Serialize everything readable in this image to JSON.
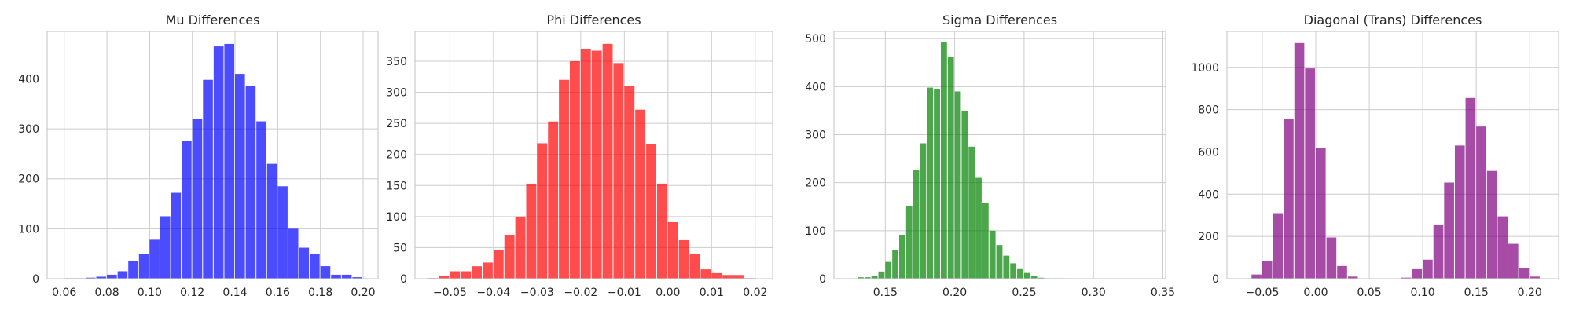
{
  "chart_data": [
    {
      "type": "histogram",
      "title": "Mu Differences",
      "color": "#0000ff",
      "x": [
        0.06,
        0.065,
        0.07,
        0.075,
        0.08,
        0.085,
        0.09,
        0.095,
        0.1,
        0.105,
        0.11,
        0.115,
        0.12,
        0.125,
        0.13,
        0.135,
        0.14,
        0.145,
        0.15,
        0.155,
        0.16,
        0.165,
        0.17,
        0.175,
        0.18,
        0.185,
        0.19,
        0.195
      ],
      "bin_width": 0.005,
      "values": [
        1,
        1,
        2,
        4,
        8,
        15,
        35,
        50,
        78,
        125,
        172,
        275,
        320,
        398,
        465,
        470,
        410,
        385,
        315,
        230,
        185,
        100,
        62,
        50,
        25,
        8,
        8,
        3
      ],
      "xlim": [
        0.052,
        0.207
      ],
      "ylim": [
        0,
        495
      ],
      "xticks": [
        0.06,
        0.08,
        0.1,
        0.12,
        0.14,
        0.16,
        0.18,
        0.2
      ],
      "xtick_labels": [
        "0.06",
        "0.08",
        "0.10",
        "0.12",
        "0.14",
        "0.16",
        "0.18",
        "0.20"
      ],
      "yticks": [
        0,
        100,
        200,
        300,
        400
      ],
      "ytick_labels": [
        "0",
        "100",
        "200",
        "300",
        "400"
      ],
      "grid": true
    },
    {
      "type": "histogram",
      "title": "Phi Differences",
      "color": "#ff0000",
      "x": [
        -0.055,
        -0.0525,
        -0.05,
        -0.0475,
        -0.045,
        -0.0425,
        -0.04,
        -0.0375,
        -0.035,
        -0.0325,
        -0.03,
        -0.0275,
        -0.025,
        -0.0225,
        -0.02,
        -0.0175,
        -0.015,
        -0.0125,
        -0.01,
        -0.0075,
        -0.005,
        -0.0025,
        0.0,
        0.0025,
        0.005,
        0.0075,
        0.01,
        0.0125,
        0.015,
        0.0175
      ],
      "bin_width": 0.0025,
      "values": [
        1,
        5,
        12,
        12,
        20,
        26,
        46,
        70,
        100,
        153,
        218,
        253,
        320,
        350,
        370,
        367,
        378,
        347,
        310,
        272,
        217,
        153,
        91,
        62,
        40,
        15,
        9,
        6,
        6,
        1
      ],
      "xlim": [
        -0.058,
        0.024
      ],
      "ylim": [
        0,
        398
      ],
      "xticks": [
        -0.05,
        -0.04,
        -0.03,
        -0.02,
        -0.01,
        0.0,
        0.01,
        0.02
      ],
      "xtick_labels": [
        "−0.05",
        "−0.04",
        "−0.03",
        "−0.02",
        "−0.01",
        "0.00",
        "0.01",
        "0.02"
      ],
      "yticks": [
        0,
        50,
        100,
        150,
        200,
        250,
        300,
        350
      ],
      "ytick_labels": [
        "0",
        "50",
        "100",
        "150",
        "200",
        "250",
        "300",
        "350"
      ],
      "grid": true
    },
    {
      "type": "histogram",
      "title": "Sigma Differences",
      "color": "#008000",
      "x": [
        0.125,
        0.13,
        0.135,
        0.14,
        0.145,
        0.15,
        0.155,
        0.16,
        0.165,
        0.17,
        0.175,
        0.18,
        0.185,
        0.19,
        0.195,
        0.2,
        0.205,
        0.21,
        0.215,
        0.22,
        0.225,
        0.23,
        0.235,
        0.24,
        0.245,
        0.25,
        0.255,
        0.26,
        0.265,
        0.27,
        0.275,
        0.28,
        0.285,
        0.29,
        0.295,
        0.3,
        0.305,
        0.31,
        0.315,
        0.32,
        0.325,
        0.33,
        0.335,
        0.34
      ],
      "bin_width": 0.005,
      "values": [
        0,
        3,
        3,
        5,
        15,
        35,
        60,
        90,
        152,
        227,
        282,
        398,
        395,
        492,
        462,
        390,
        350,
        275,
        210,
        157,
        100,
        70,
        48,
        32,
        20,
        12,
        5,
        2,
        1,
        1,
        1,
        0,
        0,
        0,
        0,
        0,
        0,
        0,
        0,
        0,
        0,
        0,
        0,
        0
      ],
      "xlim": [
        0.113,
        0.352
      ],
      "ylim": [
        0,
        515
      ],
      "xticks": [
        0.15,
        0.2,
        0.25,
        0.3,
        0.35
      ],
      "xtick_labels": [
        "0.15",
        "0.20",
        "0.25",
        "0.30",
        "0.35"
      ],
      "yticks": [
        0,
        100,
        200,
        300,
        400,
        500
      ],
      "ytick_labels": [
        "0",
        "100",
        "200",
        "300",
        "400",
        "500"
      ],
      "grid": true
    },
    {
      "type": "histogram",
      "title": "Diagonal (Trans) Differences",
      "color": "#800080",
      "x": [
        -0.07,
        -0.06,
        -0.05,
        -0.04,
        -0.03,
        -0.02,
        -0.01,
        0.0,
        0.01,
        0.02,
        0.03,
        0.04,
        0.05,
        0.06,
        0.07,
        0.08,
        0.09,
        0.1,
        0.11,
        0.12,
        0.13,
        0.14,
        0.15,
        0.16,
        0.17,
        0.18,
        0.19,
        0.2
      ],
      "bin_width": 0.01,
      "values": [
        0,
        20,
        85,
        310,
        755,
        1115,
        995,
        620,
        195,
        60,
        10,
        0,
        0,
        0,
        0,
        5,
        45,
        90,
        255,
        455,
        630,
        855,
        720,
        510,
        295,
        165,
        50,
        10
      ],
      "xlim": [
        -0.083,
        0.227
      ],
      "ylim": [
        0,
        1170
      ],
      "xticks": [
        -0.05,
        0.0,
        0.05,
        0.1,
        0.15,
        0.2
      ],
      "xtick_labels": [
        "−0.05",
        "0.00",
        "0.05",
        "0.10",
        "0.15",
        "0.20"
      ],
      "yticks": [
        0,
        200,
        400,
        600,
        800,
        1000
      ],
      "ytick_labels": [
        "0",
        "200",
        "400",
        "600",
        "800",
        "1000"
      ],
      "grid": true
    }
  ]
}
